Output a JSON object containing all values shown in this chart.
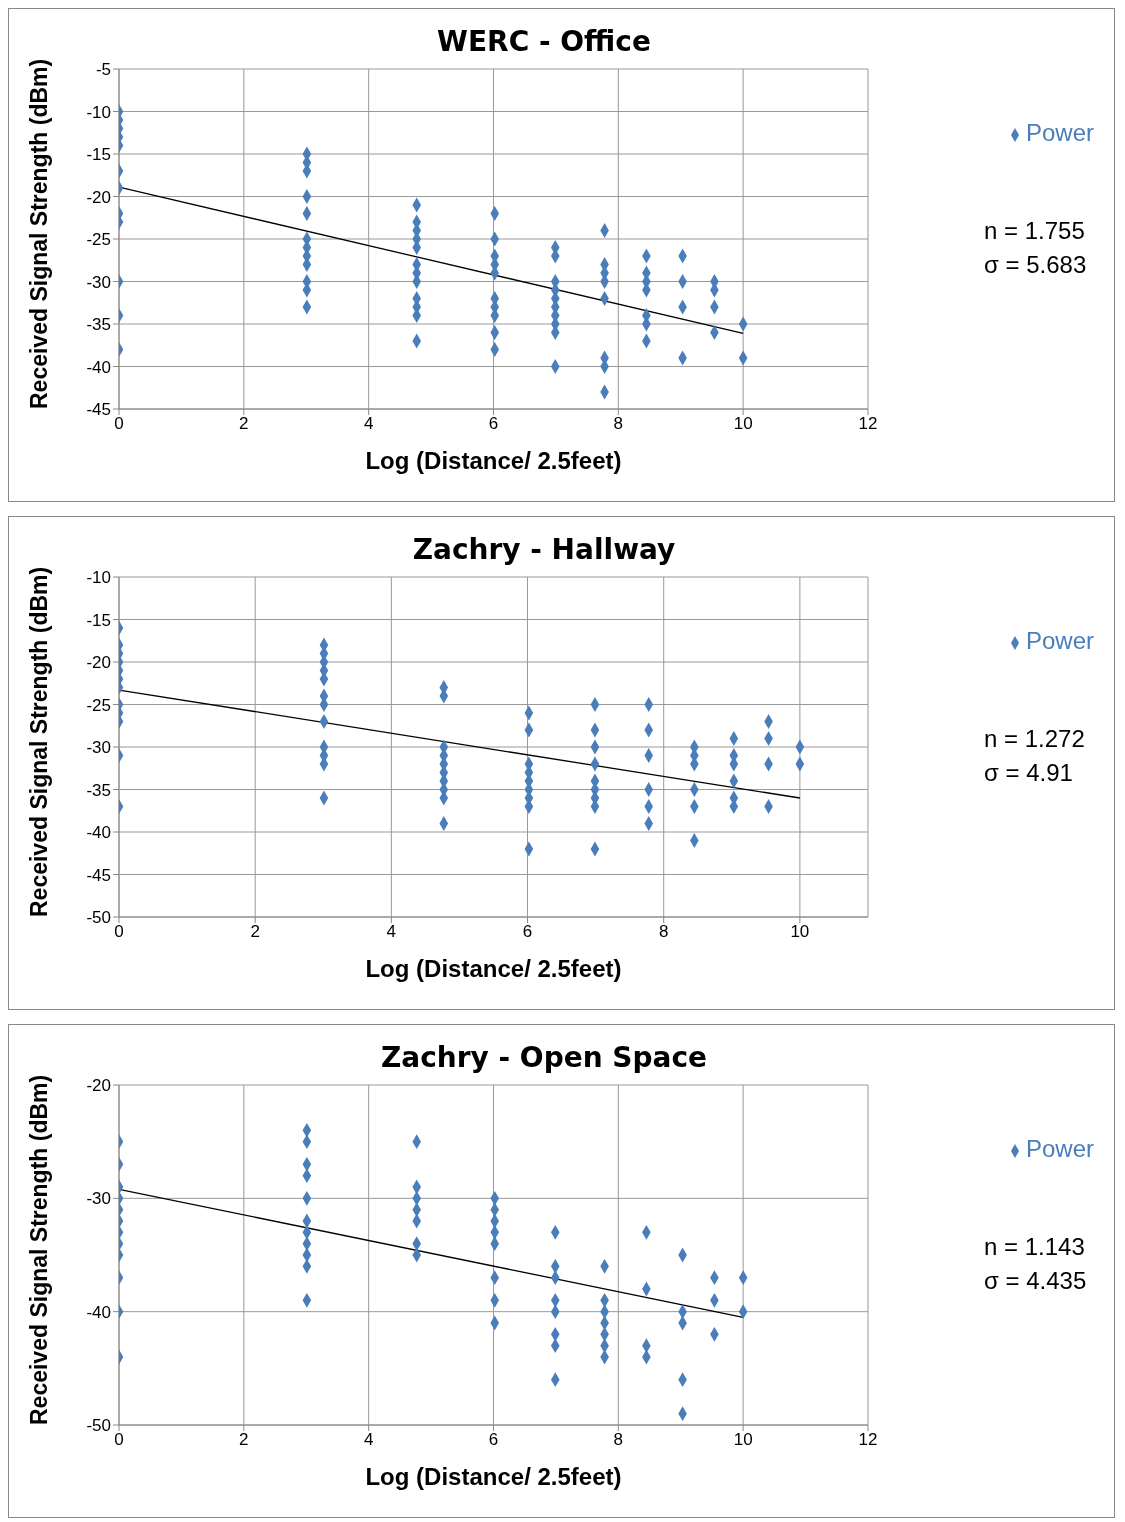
{
  "chart_data": [
    {
      "type": "scatter",
      "title": "WERC - Office",
      "xlabel": "Log (Distance/ 2.5feet)",
      "ylabel": "Received Signal Strength (dBm)",
      "xlim": [
        0,
        12
      ],
      "xticks": [
        0,
        2,
        4,
        6,
        8,
        10,
        12
      ],
      "ylim": [
        -45,
        -5
      ],
      "yticks": [
        -45,
        -40,
        -35,
        -30,
        -25,
        -20,
        -15,
        -10,
        -5
      ],
      "grid": true,
      "legend": "right",
      "marker": "diamond",
      "series": [
        {
          "name": "Power",
          "color": "#4a7ebb",
          "x": [
            0,
            0,
            0,
            0,
            0,
            0,
            0,
            0,
            0,
            0,
            0,
            0,
            3.01,
            3.01,
            3.01,
            3.01,
            3.01,
            3.01,
            3.01,
            3.01,
            3.01,
            3.01,
            3.01,
            3.01,
            4.77,
            4.77,
            4.77,
            4.77,
            4.77,
            4.77,
            4.77,
            4.77,
            4.77,
            4.77,
            4.77,
            4.77,
            6.02,
            6.02,
            6.02,
            6.02,
            6.02,
            6.02,
            6.02,
            6.02,
            6.02,
            6.02,
            6.99,
            6.99,
            6.99,
            6.99,
            6.99,
            6.99,
            6.99,
            6.99,
            6.99,
            6.99,
            7.78,
            7.78,
            7.78,
            7.78,
            7.78,
            7.78,
            7.78,
            7.78,
            8.45,
            8.45,
            8.45,
            8.45,
            8.45,
            8.45,
            8.45,
            9.03,
            9.03,
            9.03,
            9.03,
            9.54,
            9.54,
            9.54,
            9.54,
            10,
            10
          ],
          "values": [
            -10,
            -11,
            -12,
            -13,
            -14,
            -17,
            -19,
            -22,
            -23,
            -30,
            -34,
            -38,
            -15,
            -16,
            -17,
            -20,
            -22,
            -25,
            -26,
            -27,
            -28,
            -30,
            -31,
            -33,
            -21,
            -23,
            -24,
            -25,
            -26,
            -28,
            -29,
            -30,
            -32,
            -33,
            -34,
            -37,
            -22,
            -25,
            -27,
            -28,
            -29,
            -32,
            -33,
            -34,
            -36,
            -38,
            -26,
            -27,
            -30,
            -31,
            -32,
            -33,
            -34,
            -35,
            -36,
            -40,
            -24,
            -28,
            -29,
            -30,
            -32,
            -39,
            -40,
            -43,
            -27,
            -29,
            -30,
            -31,
            -34,
            -35,
            -37,
            -27,
            -30,
            -33,
            -39,
            -30,
            -31,
            -33,
            -36,
            -35,
            -39
          ]
        },
        {
          "type": "line",
          "color": "#000000",
          "marker": "none",
          "x": [
            0,
            10
          ],
          "values": [
            -18.9,
            -36.1
          ]
        }
      ],
      "annotations": [
        "n = 1.755",
        "σ = 5.683"
      ]
    },
    {
      "type": "scatter",
      "title": "Zachry - Hallway",
      "xlabel": "Log (Distance/ 2.5feet)",
      "ylabel": "Received Signal Strength (dBm)",
      "xlim": [
        0,
        11
      ],
      "xticks": [
        0,
        2,
        4,
        6,
        8,
        10
      ],
      "ylim": [
        -50,
        -10
      ],
      "yticks": [
        -50,
        -45,
        -40,
        -35,
        -30,
        -25,
        -20,
        -15,
        -10
      ],
      "grid": true,
      "legend": "right",
      "marker": "diamond",
      "series": [
        {
          "name": "Power",
          "color": "#4a7ebb",
          "x": [
            0,
            0,
            0,
            0,
            0,
            0,
            0,
            0,
            0,
            0,
            0,
            0,
            3.01,
            3.01,
            3.01,
            3.01,
            3.01,
            3.01,
            3.01,
            3.01,
            3.01,
            3.01,
            3.01,
            3.01,
            4.77,
            4.77,
            4.77,
            4.77,
            4.77,
            4.77,
            4.77,
            4.77,
            4.77,
            4.77,
            6.02,
            6.02,
            6.02,
            6.02,
            6.02,
            6.02,
            6.02,
            6.02,
            6.02,
            6.99,
            6.99,
            6.99,
            6.99,
            6.99,
            6.99,
            6.99,
            6.99,
            6.99,
            7.78,
            7.78,
            7.78,
            7.78,
            7.78,
            7.78,
            8.45,
            8.45,
            8.45,
            8.45,
            8.45,
            8.45,
            9.03,
            9.03,
            9.03,
            9.03,
            9.03,
            9.03,
            9.54,
            9.54,
            9.54,
            9.54,
            10,
            10
          ],
          "values": [
            -16,
            -18,
            -19,
            -20,
            -21,
            -22,
            -23,
            -25,
            -26,
            -27,
            -31,
            -37,
            -18,
            -19,
            -20,
            -21,
            -22,
            -24,
            -25,
            -27,
            -30,
            -31,
            -32,
            -36,
            -23,
            -24,
            -30,
            -31,
            -32,
            -33,
            -34,
            -35,
            -36,
            -39,
            -26,
            -28,
            -32,
            -33,
            -34,
            -35,
            -36,
            -37,
            -42,
            -25,
            -28,
            -30,
            -32,
            -34,
            -35,
            -36,
            -37,
            -42,
            -25,
            -28,
            -31,
            -35,
            -37,
            -39,
            -30,
            -31,
            -32,
            -35,
            -37,
            -41,
            -29,
            -31,
            -32,
            -34,
            -36,
            -37,
            -27,
            -29,
            -32,
            -37,
            -30,
            -32
          ]
        },
        {
          "type": "line",
          "color": "#000000",
          "marker": "none",
          "x": [
            0,
            10
          ],
          "values": [
            -23.3,
            -36
          ]
        }
      ],
      "annotations": [
        "n = 1.272",
        "σ = 4.91"
      ]
    },
    {
      "type": "scatter",
      "title": "Zachry - Open Space",
      "xlabel": "Log (Distance/ 2.5feet)",
      "ylabel": "Received Signal Strength (dBm)",
      "xlim": [
        0,
        12
      ],
      "xticks": [
        0,
        2,
        4,
        6,
        8,
        10,
        12
      ],
      "ylim": [
        -50,
        -20
      ],
      "yticks": [
        -50,
        -40,
        -30,
        -20
      ],
      "grid": true,
      "legend": "right",
      "marker": "diamond",
      "series": [
        {
          "name": "Power",
          "color": "#4a7ebb",
          "x": [
            0,
            0,
            0,
            0,
            0,
            0,
            0,
            0,
            0,
            0,
            0,
            0,
            3.01,
            3.01,
            3.01,
            3.01,
            3.01,
            3.01,
            3.01,
            3.01,
            3.01,
            3.01,
            3.01,
            4.77,
            4.77,
            4.77,
            4.77,
            4.77,
            4.77,
            4.77,
            6.02,
            6.02,
            6.02,
            6.02,
            6.02,
            6.02,
            6.02,
            6.02,
            6.99,
            6.99,
            6.99,
            6.99,
            6.99,
            6.99,
            6.99,
            6.99,
            7.78,
            7.78,
            7.78,
            7.78,
            7.78,
            7.78,
            7.78,
            8.45,
            8.45,
            8.45,
            8.45,
            9.03,
            9.03,
            9.03,
            9.03,
            9.03,
            9.54,
            9.54,
            9.54,
            10,
            10
          ],
          "values": [
            -25,
            -27,
            -29,
            -30,
            -31,
            -32,
            -33,
            -34,
            -35,
            -37,
            -40,
            -44,
            -24,
            -25,
            -27,
            -28,
            -30,
            -32,
            -33,
            -34,
            -35,
            -36,
            -39,
            -25,
            -29,
            -30,
            -31,
            -32,
            -34,
            -35,
            -30,
            -31,
            -32,
            -33,
            -34,
            -37,
            -39,
            -41,
            -33,
            -36,
            -37,
            -39,
            -40,
            -42,
            -43,
            -46,
            -36,
            -39,
            -40,
            -41,
            -42,
            -43,
            -44,
            -33,
            -38,
            -43,
            -44,
            -35,
            -40,
            -41,
            -46,
            -49,
            -37,
            -39,
            -42,
            -37,
            -40
          ]
        },
        {
          "type": "line",
          "color": "#000000",
          "marker": "none",
          "x": [
            0,
            10
          ],
          "values": [
            -29.2,
            -40.5
          ]
        }
      ],
      "annotations": [
        "n = 1.143",
        "σ = 4.435"
      ]
    }
  ]
}
